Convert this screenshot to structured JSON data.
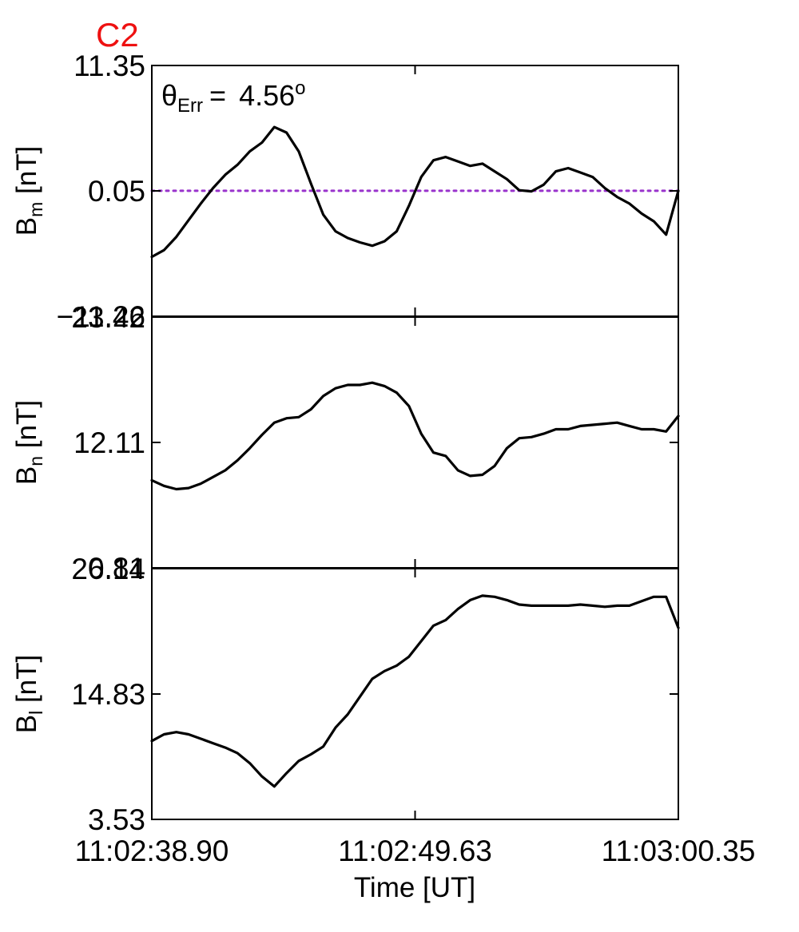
{
  "figure": {
    "panel_label": "C2",
    "panel_label_color": "#ee1111",
    "annotation": {
      "symbol": "θ",
      "sub": "Err",
      "value": "4.56",
      "sup": "o"
    },
    "xlabel": "Time [UT]"
  },
  "chart_data": [
    {
      "type": "line",
      "id": "bm",
      "ylabel": {
        "main": "B",
        "sub": "m",
        "unit": " [nT]"
      },
      "ylim": [
        -11.26,
        11.35
      ],
      "yticks": [
        "11.35",
        "0.05",
        "−11.26"
      ],
      "xticks": [],
      "reference_line": {
        "y": 0.05,
        "color": "#9933cc",
        "style": "dotted"
      },
      "x": [
        0,
        0.5,
        1,
        1.5,
        2,
        2.5,
        3,
        3.5,
        4,
        4.5,
        5,
        5.5,
        6,
        6.5,
        7,
        7.5,
        8,
        8.5,
        9,
        9.5,
        10,
        10.5,
        11,
        11.5,
        12,
        12.5,
        13,
        13.5,
        14,
        14.5,
        15,
        15.5,
        16,
        16.5,
        17,
        17.5,
        18,
        18.5,
        19,
        19.5,
        20,
        20.5,
        21,
        21.5
      ],
      "series": [
        {
          "color": "#000000",
          "values": [
            -5.9,
            -5.3,
            -4.1,
            -2.6,
            -1.1,
            0.3,
            1.5,
            2.4,
            3.6,
            4.4,
            5.8,
            5.3,
            3.6,
            0.7,
            -2.1,
            -3.6,
            -4.2,
            -4.6,
            -4.9,
            -4.5,
            -3.6,
            -1.3,
            1.3,
            2.8,
            3.1,
            2.7,
            2.3,
            2.5,
            1.8,
            1.1,
            0.1,
            0.0,
            0.6,
            1.8,
            2.1,
            1.7,
            1.3,
            0.3,
            -0.5,
            -1.1,
            -2.0,
            -2.7,
            -3.9,
            0.05
          ]
        }
      ]
    },
    {
      "type": "line",
      "id": "bn",
      "ylabel": {
        "main": "B",
        "sub": "n",
        "unit": " [nT]"
      },
      "ylim": [
        0.81,
        23.42
      ],
      "yticks": [
        "23.42",
        "12.11",
        "0.81"
      ],
      "xticks": [],
      "x": [
        0,
        0.5,
        1,
        1.5,
        2,
        2.5,
        3,
        3.5,
        4,
        4.5,
        5,
        5.5,
        6,
        6.5,
        7,
        7.5,
        8,
        8.5,
        9,
        9.5,
        10,
        10.5,
        11,
        11.5,
        12,
        12.5,
        13,
        13.5,
        14,
        14.5,
        15,
        15.5,
        16,
        16.5,
        17,
        17.5,
        18,
        18.5,
        19,
        19.5,
        20,
        20.5,
        21,
        21.5
      ],
      "series": [
        {
          "color": "#000000",
          "values": [
            8.7,
            8.2,
            7.9,
            8.0,
            8.4,
            9.0,
            9.6,
            10.5,
            11.6,
            12.8,
            13.9,
            14.3,
            14.4,
            15.1,
            16.3,
            17.0,
            17.3,
            17.3,
            17.5,
            17.2,
            16.6,
            15.4,
            12.9,
            11.2,
            10.9,
            9.6,
            9.1,
            9.2,
            10.0,
            11.6,
            12.5,
            12.6,
            12.9,
            13.3,
            13.3,
            13.6,
            13.7,
            13.8,
            13.9,
            13.6,
            13.3,
            13.3,
            13.1,
            14.5
          ]
        }
      ]
    },
    {
      "type": "line",
      "id": "bl",
      "ylabel": {
        "main": "B",
        "sub": "l",
        "unit": " [nT]"
      },
      "ylim": [
        3.53,
        26.14
      ],
      "yticks": [
        "26.14",
        "14.83",
        "3.53"
      ],
      "xticks": [
        "11:02:38.90",
        "11:02:49.63",
        "11:03:00.35"
      ],
      "x": [
        0,
        0.5,
        1,
        1.5,
        2,
        2.5,
        3,
        3.5,
        4,
        4.5,
        5,
        5.5,
        6,
        6.5,
        7,
        7.5,
        8,
        8.5,
        9,
        9.5,
        10,
        10.5,
        11,
        11.5,
        12,
        12.5,
        13,
        13.5,
        14,
        14.5,
        15,
        15.5,
        16,
        16.5,
        17,
        17.5,
        18,
        18.5,
        19,
        19.5,
        20,
        20.5,
        21,
        21.5
      ],
      "series": [
        {
          "color": "#000000",
          "values": [
            10.6,
            11.2,
            11.4,
            11.2,
            10.8,
            10.4,
            10.0,
            9.5,
            8.6,
            7.4,
            6.5,
            7.7,
            8.8,
            9.4,
            10.1,
            11.8,
            13.0,
            14.6,
            16.2,
            16.9,
            17.4,
            18.2,
            19.6,
            21.0,
            21.5,
            22.5,
            23.3,
            23.7,
            23.6,
            23.3,
            22.9,
            22.8,
            22.8,
            22.8,
            22.8,
            22.9,
            22.8,
            22.7,
            22.8,
            22.8,
            23.2,
            23.6,
            23.6,
            20.8
          ]
        }
      ]
    }
  ]
}
